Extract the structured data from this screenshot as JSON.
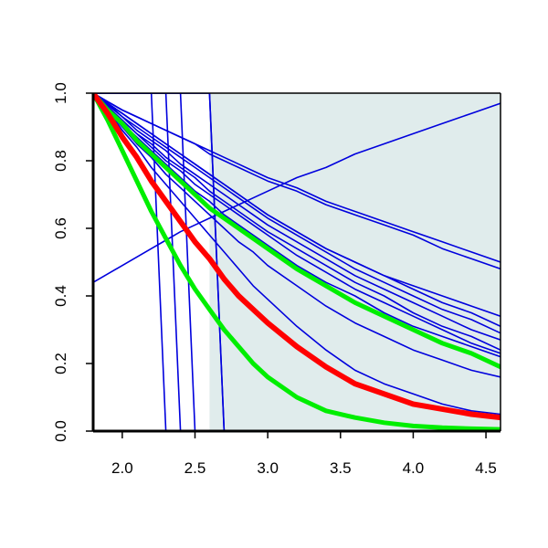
{
  "chart_data": {
    "type": "line",
    "title": "",
    "xlabel": "",
    "ylabel": "",
    "xlim": [
      1.8,
      4.6
    ],
    "ylim": [
      0.0,
      1.0
    ],
    "x_ticks": [
      "2.0",
      "2.5",
      "3.0",
      "3.5",
      "4.0",
      "4.5"
    ],
    "y_ticks": [
      "0.0",
      "0.2",
      "0.4",
      "0.6",
      "0.8",
      "1.0"
    ],
    "grid": false,
    "legend": "none",
    "shaded_region": {
      "x_from": 2.6,
      "x_to": 4.6,
      "color": "#e0ecec"
    },
    "x": [
      1.8,
      1.9,
      2.0,
      2.1,
      2.2,
      2.3,
      2.4,
      2.5,
      2.6,
      2.7,
      2.8,
      2.9,
      3.0,
      3.2,
      3.4,
      3.6,
      3.8,
      4.0,
      4.2,
      4.4,
      4.6
    ],
    "series": [
      {
        "color": "#ff0000",
        "width": 6,
        "values": [
          1.0,
          0.94,
          0.87,
          0.81,
          0.74,
          0.68,
          0.62,
          0.56,
          0.51,
          0.45,
          0.4,
          0.36,
          0.32,
          0.25,
          0.19,
          0.14,
          0.11,
          0.08,
          0.065,
          0.05,
          0.04
        ]
      },
      {
        "color": "#00ee00",
        "width": 5,
        "values": [
          1.0,
          0.92,
          0.83,
          0.74,
          0.65,
          0.57,
          0.49,
          0.42,
          0.36,
          0.3,
          0.25,
          0.2,
          0.16,
          0.1,
          0.06,
          0.04,
          0.025,
          0.015,
          0.01,
          0.007,
          0.005
        ]
      },
      {
        "color": "#00ee00",
        "width": 5,
        "values": [
          1.0,
          0.95,
          0.91,
          0.86,
          0.82,
          0.78,
          0.74,
          0.7,
          0.66,
          0.63,
          0.6,
          0.57,
          0.54,
          0.48,
          0.43,
          0.38,
          0.34,
          0.3,
          0.26,
          0.23,
          0.19
        ]
      },
      {
        "color": "#0000dd",
        "width": 1.6,
        "values": [
          0.44,
          0.465,
          0.49,
          0.515,
          0.54,
          0.565,
          0.59,
          0.61,
          0.63,
          0.65,
          0.67,
          0.69,
          0.71,
          0.75,
          0.78,
          0.82,
          0.85,
          0.88,
          0.91,
          0.94,
          0.97
        ]
      },
      {
        "color": "#0000dd",
        "width": 1.6,
        "values": [
          1.0,
          0.975,
          0.95,
          0.93,
          0.91,
          0.89,
          0.87,
          0.85,
          0.83,
          0.81,
          0.79,
          0.77,
          0.75,
          0.72,
          0.68,
          0.65,
          0.62,
          0.59,
          0.56,
          0.53,
          0.5
        ]
      },
      {
        "color": "#0000dd",
        "width": 1.6,
        "values": [
          1.0,
          0.975,
          0.95,
          0.93,
          0.91,
          0.89,
          0.87,
          0.85,
          0.82,
          0.8,
          0.78,
          0.76,
          0.74,
          0.71,
          0.67,
          0.64,
          0.61,
          0.58,
          0.54,
          0.51,
          0.48
        ]
      },
      {
        "color": "#0000dd",
        "width": 1.6,
        "values": [
          1.0,
          0.97,
          0.94,
          0.91,
          0.88,
          0.85,
          0.82,
          0.79,
          0.76,
          0.73,
          0.7,
          0.67,
          0.64,
          0.59,
          0.54,
          0.5,
          0.46,
          0.43,
          0.4,
          0.37,
          0.34
        ]
      },
      {
        "color": "#0000dd",
        "width": 1.6,
        "values": [
          1.0,
          0.97,
          0.94,
          0.91,
          0.88,
          0.85,
          0.82,
          0.79,
          0.76,
          0.73,
          0.7,
          0.67,
          0.64,
          0.59,
          0.54,
          0.5,
          0.46,
          0.42,
          0.38,
          0.35,
          0.31
        ]
      },
      {
        "color": "#0000dd",
        "width": 1.6,
        "values": [
          1.0,
          0.97,
          0.93,
          0.9,
          0.87,
          0.84,
          0.81,
          0.78,
          0.75,
          0.72,
          0.69,
          0.66,
          0.63,
          0.58,
          0.53,
          0.48,
          0.44,
          0.4,
          0.36,
          0.33,
          0.29
        ]
      },
      {
        "color": "#0000dd",
        "width": 1.6,
        "values": [
          1.0,
          0.965,
          0.93,
          0.89,
          0.86,
          0.83,
          0.79,
          0.76,
          0.73,
          0.7,
          0.67,
          0.64,
          0.61,
          0.56,
          0.51,
          0.46,
          0.42,
          0.38,
          0.34,
          0.3,
          0.27
        ]
      },
      {
        "color": "#0000dd",
        "width": 1.6,
        "values": [
          1.0,
          0.96,
          0.92,
          0.88,
          0.85,
          0.81,
          0.78,
          0.75,
          0.71,
          0.68,
          0.65,
          0.62,
          0.59,
          0.54,
          0.49,
          0.44,
          0.4,
          0.35,
          0.31,
          0.28,
          0.24
        ]
      },
      {
        "color": "#0000dd",
        "width": 1.6,
        "values": [
          1.0,
          0.96,
          0.92,
          0.88,
          0.84,
          0.8,
          0.77,
          0.73,
          0.7,
          0.67,
          0.64,
          0.61,
          0.58,
          0.52,
          0.47,
          0.42,
          0.38,
          0.34,
          0.3,
          0.26,
          0.23
        ]
      },
      {
        "color": "#0000dd",
        "width": 1.6,
        "values": [
          1.0,
          0.955,
          0.91,
          0.87,
          0.83,
          0.79,
          0.75,
          0.71,
          0.68,
          0.64,
          0.61,
          0.58,
          0.55,
          0.49,
          0.44,
          0.4,
          0.35,
          0.31,
          0.28,
          0.25,
          0.22
        ]
      },
      {
        "color": "#0000dd",
        "width": 1.6,
        "values": [
          1.0,
          0.95,
          0.9,
          0.85,
          0.81,
          0.76,
          0.72,
          0.68,
          0.64,
          0.6,
          0.56,
          0.53,
          0.49,
          0.43,
          0.37,
          0.32,
          0.28,
          0.24,
          0.21,
          0.18,
          0.16
        ]
      },
      {
        "color": "#0000dd",
        "width": 1.6,
        "values": [
          1.0,
          0.95,
          0.89,
          0.84,
          0.78,
          0.73,
          0.68,
          0.63,
          0.58,
          0.53,
          0.48,
          0.43,
          0.39,
          0.31,
          0.24,
          0.18,
          0.14,
          0.11,
          0.08,
          0.06,
          0.05
        ]
      },
      {
        "color": "#0000dd",
        "width": 1.6,
        "values": [
          1.0,
          1.0,
          1.0,
          1.0,
          1.0,
          0.0,
          0.0,
          0.0,
          0.0,
          0.0,
          0.0,
          0.0,
          0.0,
          0.0,
          0.0,
          0.0,
          0.0,
          0.0,
          0.0,
          0.0,
          0.0
        ]
      },
      {
        "color": "#0000dd",
        "width": 1.6,
        "values": [
          1.0,
          1.0,
          1.0,
          1.0,
          1.0,
          1.0,
          0.0,
          0.0,
          0.0,
          0.0,
          0.0,
          0.0,
          0.0,
          0.0,
          0.0,
          0.0,
          0.0,
          0.0,
          0.0,
          0.0,
          0.0
        ]
      },
      {
        "color": "#0000dd",
        "width": 1.6,
        "values": [
          1.0,
          1.0,
          1.0,
          1.0,
          1.0,
          1.0,
          1.0,
          0.0,
          0.0,
          0.0,
          0.0,
          0.0,
          0.0,
          0.0,
          0.0,
          0.0,
          0.0,
          0.0,
          0.0,
          0.0,
          0.0
        ]
      },
      {
        "color": "#0000dd",
        "width": 1.6,
        "values": [
          1.0,
          1.0,
          1.0,
          1.0,
          1.0,
          1.0,
          1.0,
          1.0,
          1.0,
          0.0,
          0.0,
          0.0,
          0.0,
          0.0,
          0.0,
          0.0,
          0.0,
          0.0,
          0.0,
          0.0,
          0.0
        ]
      },
      {
        "color": "#0000dd",
        "width": 1.6,
        "values": [
          1.0,
          1.0,
          1.0,
          1.0,
          1.0,
          1.0,
          1.0,
          1.0,
          1.0,
          0.0,
          0.0,
          0.0,
          0.0,
          0.0,
          0.0,
          0.0,
          0.0,
          0.0,
          0.0,
          0.0,
          0.0
        ]
      }
    ]
  }
}
